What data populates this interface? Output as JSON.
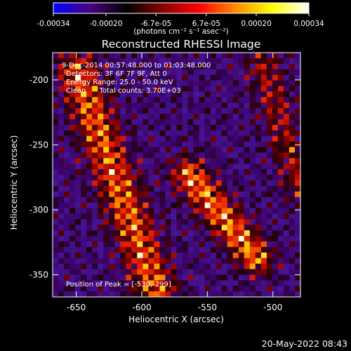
{
  "chart_data": {
    "type": "heatmap",
    "title": "Reconstructed RHESSI Image",
    "xlabel": "Heliocentric X (arcsec)",
    "ylabel": "Heliocentric Y (arcsec)",
    "xlim": [
      -668,
      -479
    ],
    "ylim": [
      -367,
      -179
    ],
    "x_ticks": [
      -650,
      -600,
      -550,
      -500
    ],
    "x_tick_labels": [
      "-650",
      "-600",
      "-550",
      "-500"
    ],
    "y_ticks": [
      -350,
      -300,
      -250,
      -200
    ],
    "y_tick_labels": [
      "-350",
      "-300",
      "-250",
      "-200"
    ],
    "colorbar": {
      "range": [
        -0.00034,
        0.00034
      ],
      "ticks": [
        -0.00034,
        -0.0002,
        -6.7e-05,
        6.7e-05,
        0.0002,
        0.00034
      ],
      "tick_labels": [
        "-0.00034",
        "-0.00020",
        "-6.7e-05",
        "6.7e-05",
        "0.00020",
        "0.00034"
      ],
      "unit_label": "(photons cm⁻² s⁻¹ asec⁻²)",
      "colormap": [
        "#0000ff",
        "#4b0082",
        "#000000",
        "#8b0000",
        "#ff0000",
        "#ff8c00",
        "#ffff00",
        "#ffffff"
      ]
    },
    "annotations": [
      "9-Dec-2014 00:57:48.000 to 01:03:48.000",
      "Detectors: 3F 6F 7F 9F, Att 0",
      "Energy Range: 25.0 - 50.0 keV",
      "Clean      Total counts: 3.70E+03",
      "Position of Peak = [-530,-299]"
    ],
    "peak": {
      "x": -530,
      "y": -299
    },
    "grid": false
  },
  "footer": {
    "date": "20-May-2022 08:43"
  }
}
